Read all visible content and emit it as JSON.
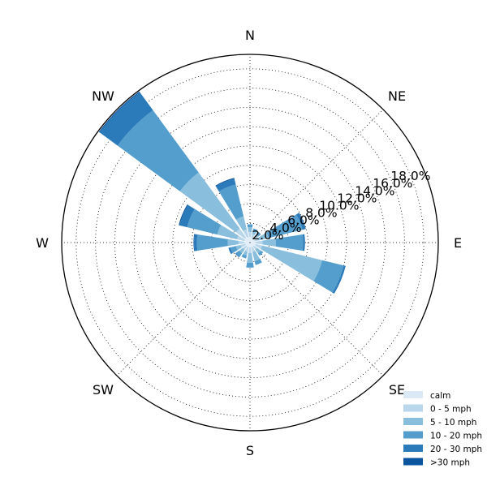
{
  "chart_data": {
    "type": "windrose",
    "directions": [
      "N",
      "NNE",
      "NE",
      "ENE",
      "E",
      "ESE",
      "SE",
      "SSE",
      "S",
      "SSW",
      "SW",
      "WSW",
      "W",
      "WNW",
      "NW",
      "NNW"
    ],
    "compass_labels": [
      "N",
      "NE",
      "E",
      "SE",
      "S",
      "SW",
      "W",
      "NW"
    ],
    "r_ticks": [
      "2.0%",
      "4.0%",
      "6.0%",
      "8.0%",
      "10.0%",
      "12.0%",
      "14.0%",
      "16.0%",
      "18.0%"
    ],
    "r_max": 19.5,
    "grid": true,
    "legend_position": "bottom-right",
    "series": [
      {
        "name": "calm",
        "color": "#dbe9f6",
        "values": [
          0.6,
          0.5,
          0.5,
          0.5,
          0.6,
          0.6,
          0.5,
          0.5,
          0.5,
          0.5,
          0.5,
          0.5,
          0.6,
          0.6,
          0.7,
          0.6
        ]
      },
      {
        "name": "0 - 5 mph",
        "color": "#bad6eb",
        "values": [
          0.5,
          0.4,
          0.3,
          0.4,
          0.7,
          0.7,
          0.4,
          0.5,
          0.6,
          0.5,
          0.4,
          0.5,
          0.6,
          0.8,
          1.1,
          0.8
        ]
      },
      {
        "name": "5 - 10 mph",
        "color": "#89bedc",
        "values": [
          0.5,
          0.3,
          0.3,
          1.1,
          1.4,
          6.4,
          0.5,
          1.0,
          1.0,
          0.4,
          0.5,
          0.5,
          1.1,
          2.1,
          7.2,
          1.4
        ]
      },
      {
        "name": "10 - 20 mph",
        "color": "#539ecd",
        "values": [
          0.3,
          0.3,
          0.3,
          3.6,
          2.8,
          2.3,
          0.3,
          0.4,
          0.5,
          0.3,
          0.4,
          0.6,
          3.2,
          3.2,
          8.0,
          3.4
        ]
      },
      {
        "name": "20 - 30 mph",
        "color": "#2b7bba",
        "values": [
          0,
          0,
          0,
          0.3,
          0.2,
          0.2,
          0,
          0,
          0,
          0,
          0.1,
          0.2,
          0.3,
          0.8,
          2.3,
          0.6
        ]
      },
      {
        "name": ">30 mph",
        "color": "#0b559f",
        "values": [
          0,
          0,
          0,
          0.05,
          0,
          0,
          0,
          0,
          0,
          0,
          0,
          0,
          0.05,
          0.1,
          0.1,
          0.1
        ]
      }
    ]
  }
}
